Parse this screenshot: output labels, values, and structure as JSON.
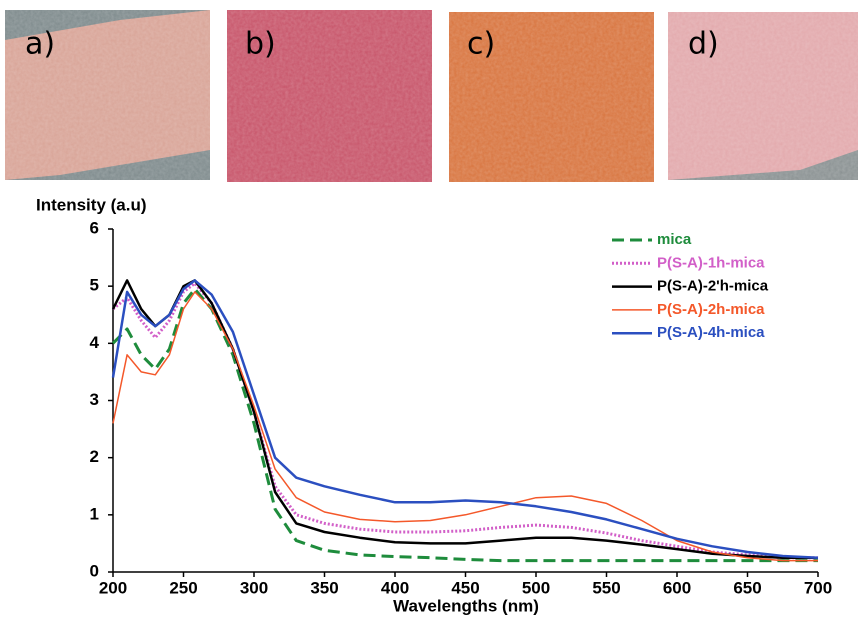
{
  "panels": [
    "a)",
    "b)",
    "c)",
    "d)"
  ],
  "chart_data": {
    "type": "line",
    "y_label": "Intensity (a.u)",
    "x_label": "Wavelengths (nm)",
    "xlim": [
      200,
      700
    ],
    "xticks": [
      200,
      250,
      300,
      350,
      400,
      450,
      500,
      550,
      600,
      650,
      700
    ],
    "ylim": [
      0,
      6
    ],
    "yticks": [
      0,
      1,
      2,
      3,
      4,
      5,
      6
    ],
    "grid": false,
    "legend": "upper right",
    "x": [
      200,
      210,
      220,
      230,
      240,
      250,
      258,
      270,
      285,
      300,
      315,
      330,
      350,
      375,
      400,
      425,
      450,
      475,
      500,
      525,
      550,
      575,
      600,
      625,
      650,
      675,
      700
    ],
    "series": [
      {
        "name": "mica",
        "color": "#1e8c3c",
        "dash": "dashed",
        "width": 3,
        "values": [
          4.0,
          4.25,
          3.8,
          3.55,
          3.9,
          4.7,
          4.95,
          4.6,
          3.8,
          2.6,
          1.1,
          0.55,
          0.38,
          0.3,
          0.27,
          0.25,
          0.22,
          0.2,
          0.2,
          0.2,
          0.2,
          0.2,
          0.2,
          0.2,
          0.2,
          0.2,
          0.2
        ]
      },
      {
        "name": "P(S-A)-1h-mica",
        "color": "#d25fc8",
        "dash": "dotted",
        "width": 3,
        "values": [
          4.6,
          4.8,
          4.4,
          4.1,
          4.4,
          4.9,
          5.05,
          4.7,
          3.9,
          2.8,
          1.5,
          1.0,
          0.85,
          0.75,
          0.7,
          0.7,
          0.72,
          0.78,
          0.82,
          0.78,
          0.68,
          0.55,
          0.45,
          0.35,
          0.3,
          0.25,
          0.25
        ]
      },
      {
        "name": "P(S-A)-2'h-mica",
        "color": "#000000",
        "dash": "solid",
        "width": 2.5,
        "values": [
          4.6,
          5.1,
          4.6,
          4.3,
          4.5,
          5.0,
          5.1,
          4.7,
          3.9,
          2.8,
          1.4,
          0.85,
          0.7,
          0.6,
          0.52,
          0.5,
          0.5,
          0.55,
          0.6,
          0.6,
          0.55,
          0.48,
          0.4,
          0.32,
          0.28,
          0.25,
          0.25
        ]
      },
      {
        "name": "P(S-A)-2h-mica",
        "color": "#f4582a",
        "dash": "solid",
        "width": 1.5,
        "values": [
          2.6,
          3.8,
          3.5,
          3.45,
          3.8,
          4.6,
          4.9,
          4.6,
          3.9,
          2.9,
          1.8,
          1.3,
          1.05,
          0.92,
          0.88,
          0.9,
          1.0,
          1.15,
          1.3,
          1.33,
          1.2,
          0.9,
          0.55,
          0.35,
          0.25,
          0.2,
          0.2
        ]
      },
      {
        "name": "P(S-A)-4h-mica",
        "color": "#2b4fc0",
        "dash": "solid",
        "width": 2.5,
        "values": [
          3.4,
          4.9,
          4.5,
          4.3,
          4.5,
          4.95,
          5.1,
          4.85,
          4.2,
          3.1,
          2.0,
          1.65,
          1.5,
          1.35,
          1.22,
          1.22,
          1.25,
          1.22,
          1.15,
          1.05,
          0.92,
          0.75,
          0.58,
          0.45,
          0.35,
          0.28,
          0.25
        ]
      }
    ]
  }
}
